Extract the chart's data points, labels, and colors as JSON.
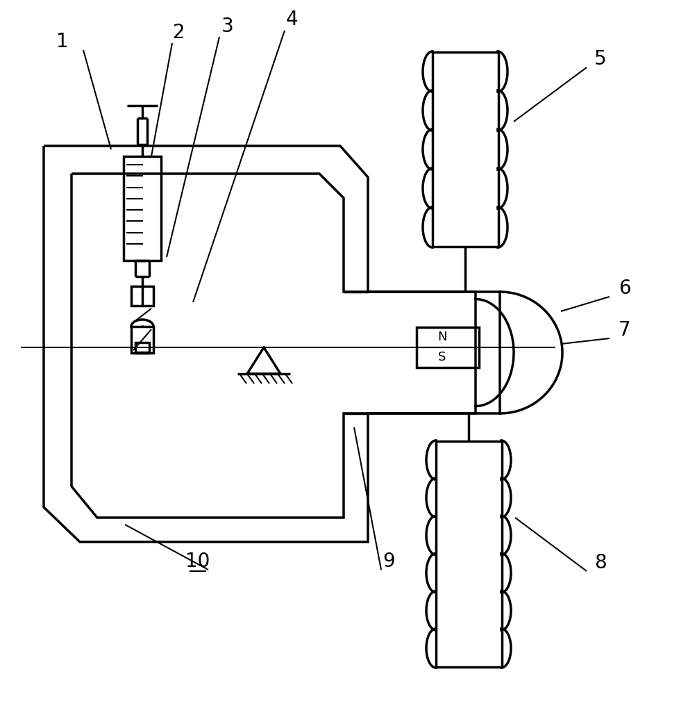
{
  "line_color": "#000000",
  "bg_color": "#ffffff",
  "lw": 2.5,
  "thin_lw": 1.5,
  "label_fontsize": 20,
  "fig_w": 9.91,
  "fig_h": 10.19,
  "dpi": 100
}
